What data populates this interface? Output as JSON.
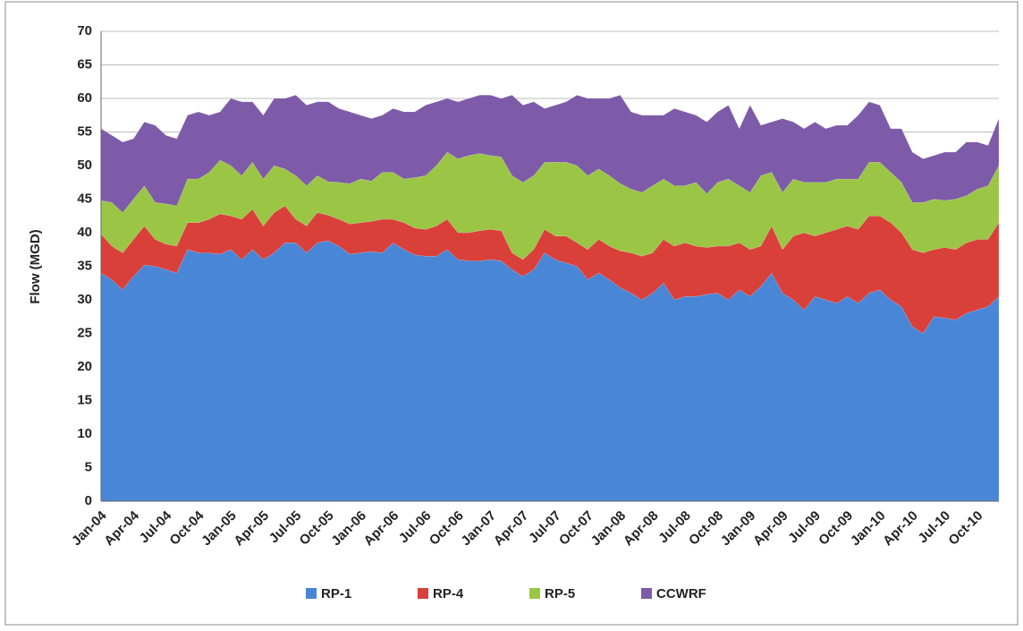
{
  "chart_data": {
    "type": "stacked_area",
    "y_label": "Flow (MGD)",
    "categories": [
      "Jan-04",
      null,
      null,
      "Apr-04",
      null,
      null,
      "Jul-04",
      null,
      null,
      "Oct-04",
      null,
      null,
      "Jan-05",
      null,
      null,
      "Apr-05",
      null,
      null,
      "Jul-05",
      null,
      null,
      "Oct-05",
      null,
      null,
      "Jan-06",
      null,
      null,
      "Apr-06",
      null,
      null,
      "Jul-06",
      null,
      null,
      "Oct-06",
      null,
      null,
      "Jan-07",
      null,
      null,
      "Apr-07",
      null,
      null,
      "Jul-07",
      null,
      null,
      "Oct-07",
      null,
      null,
      "Jan-08",
      null,
      null,
      "Apr-08",
      null,
      null,
      "Jul-08",
      null,
      null,
      "Oct-08",
      null,
      null,
      "Jan-09",
      null,
      null,
      "Apr-09",
      null,
      null,
      "Jul-09",
      null,
      null,
      "Oct-09",
      null,
      null,
      "Jan-10",
      null,
      null,
      "Apr-10",
      null,
      null,
      "Jul-10",
      null,
      null,
      "Oct-10",
      null,
      null
    ],
    "series": [
      {
        "name": "RP-1",
        "color": "#4a86d6",
        "values": [
          34,
          33,
          31.5,
          33.5,
          35.2,
          35,
          34.5,
          34,
          37.5,
          37,
          37,
          36.8,
          37.5,
          36,
          37.5,
          36,
          37,
          38.5,
          38.5,
          37,
          38.5,
          38.8,
          38,
          36.8,
          37,
          37.2,
          37,
          38.5,
          37.5,
          36.7,
          36.5,
          36.5,
          37.5,
          36,
          35.8,
          35.8,
          36,
          35.8,
          34.5,
          33.5,
          34.5,
          37,
          36,
          35.5,
          35,
          33,
          34,
          33,
          31.8,
          31,
          30,
          31,
          32.5,
          30,
          30.5,
          30.5,
          30.8,
          31,
          30,
          31.5,
          30.5,
          32,
          34,
          31,
          30,
          28.5,
          30.5,
          30,
          29.5,
          30.5,
          29.5,
          31,
          31.5,
          30,
          29,
          26,
          25,
          27.5,
          27.3,
          27,
          28,
          28.5,
          29,
          30.5
        ]
      },
      {
        "name": "RP-4",
        "color": "#d9403a",
        "values": [
          5.8,
          5,
          5.5,
          5.5,
          5.8,
          4,
          3.8,
          4,
          4,
          4.5,
          5,
          6,
          5,
          6,
          6,
          5,
          6,
          5.5,
          3.5,
          4,
          4.5,
          3.8,
          4,
          4.5,
          4.5,
          4.5,
          5,
          3.5,
          4,
          4,
          4,
          4.5,
          4.5,
          4,
          4.2,
          4.5,
          4.5,
          4.5,
          2.5,
          2.5,
          3,
          3.5,
          3.5,
          4,
          3.5,
          4.5,
          5,
          5,
          5.5,
          6,
          6.5,
          6,
          6.5,
          8,
          8,
          7.5,
          7,
          7,
          8,
          7,
          7,
          6,
          7,
          6.5,
          9.5,
          11.5,
          9,
          10,
          11,
          10.5,
          11,
          11.5,
          11,
          11.5,
          11,
          11.5,
          12,
          10,
          10.5,
          10.5,
          10.5,
          10.5,
          10,
          11
        ]
      },
      {
        "name": "RP-5",
        "color": "#9bc545",
        "values": [
          5,
          6.5,
          6,
          6,
          6,
          5.5,
          6,
          6,
          6.5,
          6.5,
          7,
          8,
          7.5,
          6.5,
          7,
          7,
          7,
          5.5,
          6.5,
          6,
          5.5,
          5,
          5.5,
          6,
          6.5,
          6,
          7,
          7,
          6.5,
          7.5,
          8,
          9,
          10,
          11,
          11.5,
          11.5,
          11,
          11,
          11.5,
          11.5,
          11,
          10,
          11,
          11,
          11.5,
          11,
          10.5,
          10.5,
          10,
          9.5,
          9.5,
          10,
          9,
          9,
          8.5,
          9.5,
          8,
          9.5,
          10,
          8.5,
          8.5,
          10.5,
          8,
          8.5,
          8.5,
          7.5,
          8,
          7.5,
          7.5,
          7,
          7.5,
          8,
          8,
          7.5,
          7.5,
          7,
          7.5,
          7.5,
          7,
          7.5,
          7,
          7.5,
          8,
          8.5
        ]
      },
      {
        "name": "CCWRF",
        "color": "#7e5ba8",
        "values": [
          10.7,
          10,
          10.5,
          9,
          9.5,
          11.5,
          10.2,
          10,
          9.5,
          10,
          8.5,
          7.2,
          10,
          11,
          9,
          9.5,
          10,
          10.5,
          12,
          12,
          11,
          11.9,
          11,
          10.7,
          9.5,
          9.3,
          8.5,
          9.5,
          10,
          9.8,
          10.5,
          9.5,
          8,
          8.5,
          8.5,
          8.7,
          9,
          8.7,
          12,
          11.5,
          11,
          8,
          8.5,
          9,
          10.5,
          11.5,
          10.5,
          11.5,
          13.2,
          11.5,
          11.5,
          10.5,
          9.5,
          11.5,
          11,
          10,
          10.7,
          10.5,
          11,
          8.5,
          13,
          7.5,
          7.5,
          11,
          8.5,
          8,
          9,
          8,
          8,
          8,
          9.5,
          9,
          8.5,
          6.5,
          8,
          7.5,
          6.5,
          6.5,
          7.2,
          7,
          8,
          7,
          6,
          7
        ]
      }
    ],
    "ylim": [
      0,
      70
    ],
    "yticks": [
      0,
      5,
      10,
      15,
      20,
      25,
      30,
      35,
      40,
      45,
      50,
      55,
      60,
      65,
      70
    ],
    "grid": true,
    "legend": "bottom"
  }
}
